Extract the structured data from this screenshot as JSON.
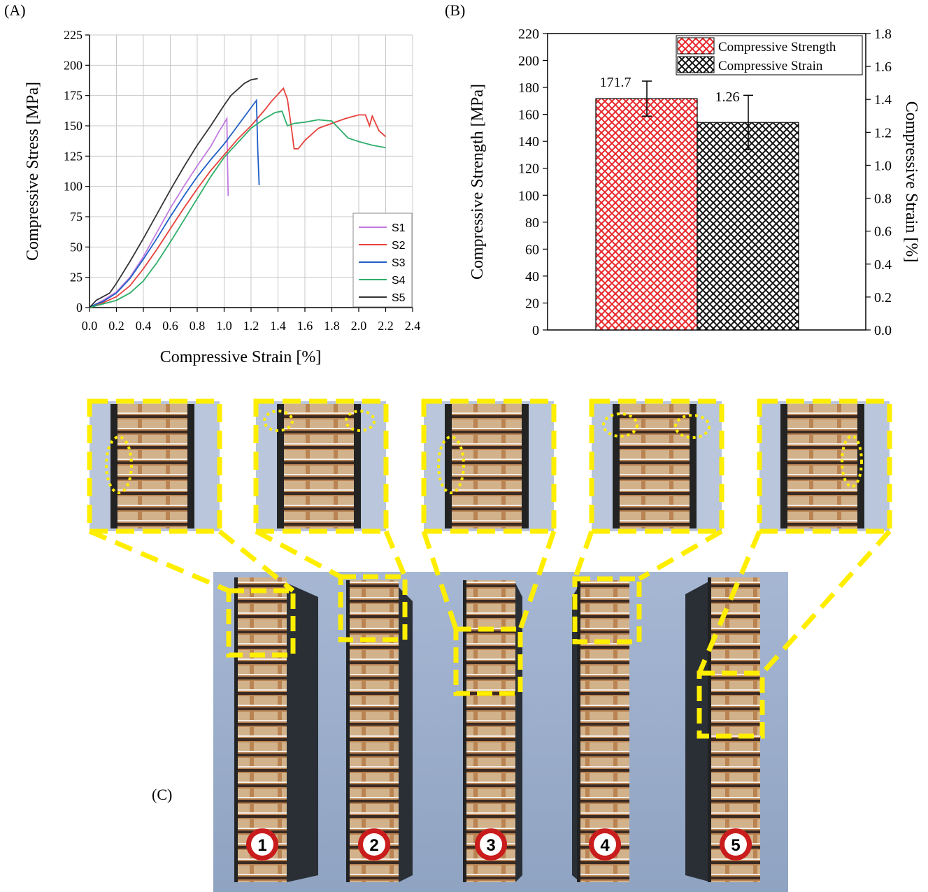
{
  "panels": {
    "a_label": "(A)",
    "b_label": "(B)",
    "c_label": "(C)"
  },
  "chart_data": [
    {
      "type": "line",
      "xlabel": "Compressive Strain [%]",
      "ylabel": "Compressive Stress [MPa]",
      "xlim": [
        0,
        2.4
      ],
      "ylim": [
        0,
        225
      ],
      "xticks": [
        "0.0",
        "0.2",
        "0.4",
        "0.6",
        "0.8",
        "1.0",
        "1.2",
        "1.4",
        "1.6",
        "1.8",
        "2.0",
        "2.2",
        "2.4"
      ],
      "yticks": [
        "0",
        "25",
        "50",
        "75",
        "100",
        "125",
        "150",
        "175",
        "200",
        "225"
      ],
      "grid": true,
      "legend_position": "bottom-right",
      "series": [
        {
          "name": "S1",
          "color": "#c27be0",
          "points": [
            [
              0,
              0
            ],
            [
              0.05,
              3
            ],
            [
              0.1,
              6
            ],
            [
              0.2,
              13
            ],
            [
              0.3,
              25
            ],
            [
              0.4,
              42
            ],
            [
              0.5,
              62
            ],
            [
              0.6,
              82
            ],
            [
              0.7,
              100
            ],
            [
              0.8,
              117
            ],
            [
              0.9,
              133
            ],
            [
              0.96,
              145
            ],
            [
              1.0,
              152
            ],
            [
              1.02,
              156
            ],
            [
              1.025,
              120
            ],
            [
              1.03,
              92
            ]
          ]
        },
        {
          "name": "S2",
          "color": "#e8403b",
          "points": [
            [
              0,
              0
            ],
            [
              0.05,
              2
            ],
            [
              0.1,
              4
            ],
            [
              0.2,
              9
            ],
            [
              0.3,
              18
            ],
            [
              0.4,
              32
            ],
            [
              0.5,
              48
            ],
            [
              0.6,
              65
            ],
            [
              0.7,
              82
            ],
            [
              0.8,
              98
            ],
            [
              0.9,
              113
            ],
            [
              1.0,
              126
            ],
            [
              1.1,
              139
            ],
            [
              1.2,
              150
            ],
            [
              1.3,
              163
            ],
            [
              1.35,
              170
            ],
            [
              1.4,
              176
            ],
            [
              1.44,
              181
            ],
            [
              1.47,
              172
            ],
            [
              1.5,
              148
            ],
            [
              1.52,
              131
            ],
            [
              1.55,
              131
            ],
            [
              1.6,
              138
            ],
            [
              1.7,
              148
            ],
            [
              1.8,
              152
            ],
            [
              1.9,
              156
            ],
            [
              2.0,
              159
            ],
            [
              2.05,
              159
            ],
            [
              2.08,
              150
            ],
            [
              2.1,
              158
            ],
            [
              2.15,
              146
            ],
            [
              2.2,
              141
            ]
          ]
        },
        {
          "name": "S3",
          "color": "#1f5fc7",
          "points": [
            [
              0,
              0
            ],
            [
              0.05,
              3
            ],
            [
              0.1,
              5
            ],
            [
              0.2,
              12
            ],
            [
              0.3,
              24
            ],
            [
              0.4,
              40
            ],
            [
              0.5,
              57
            ],
            [
              0.6,
              75
            ],
            [
              0.7,
              92
            ],
            [
              0.8,
              108
            ],
            [
              0.9,
              122
            ],
            [
              1.0,
              135
            ],
            [
              1.1,
              150
            ],
            [
              1.2,
              165
            ],
            [
              1.24,
              171
            ],
            [
              1.25,
              130
            ],
            [
              1.26,
              101
            ]
          ]
        },
        {
          "name": "S4",
          "color": "#2fae6a",
          "points": [
            [
              0,
              0
            ],
            [
              0.1,
              3
            ],
            [
              0.2,
              6
            ],
            [
              0.3,
              12
            ],
            [
              0.4,
              22
            ],
            [
              0.5,
              37
            ],
            [
              0.6,
              54
            ],
            [
              0.7,
              72
            ],
            [
              0.8,
              90
            ],
            [
              0.9,
              108
            ],
            [
              1.0,
              124
            ],
            [
              1.05,
              130
            ],
            [
              1.1,
              136
            ],
            [
              1.2,
              148
            ],
            [
              1.3,
              156
            ],
            [
              1.38,
              161
            ],
            [
              1.43,
              162
            ],
            [
              1.47,
              150
            ],
            [
              1.52,
              152
            ],
            [
              1.6,
              153
            ],
            [
              1.7,
              155
            ],
            [
              1.8,
              154
            ],
            [
              1.86,
              147
            ],
            [
              1.92,
              140
            ],
            [
              2.0,
              137
            ],
            [
              2.1,
              134
            ],
            [
              2.2,
              132
            ]
          ]
        },
        {
          "name": "S5",
          "color": "#333333",
          "points": [
            [
              0,
              0
            ],
            [
              0.05,
              6
            ],
            [
              0.1,
              9
            ],
            [
              0.15,
              12
            ],
            [
              0.2,
              20
            ],
            [
              0.3,
              38
            ],
            [
              0.4,
              57
            ],
            [
              0.5,
              77
            ],
            [
              0.6,
              97
            ],
            [
              0.7,
              116
            ],
            [
              0.8,
              134
            ],
            [
              0.9,
              150
            ],
            [
              1.0,
              167
            ],
            [
              1.05,
              175
            ],
            [
              1.15,
              185
            ],
            [
              1.2,
              188
            ],
            [
              1.25,
              189
            ]
          ]
        }
      ]
    },
    {
      "type": "bar",
      "ylabel": "Compressive Strength [MPa]",
      "ylabel_right": "Compressive Strain [%]",
      "ylim": [
        0,
        220
      ],
      "ylim_right": [
        0,
        1.8
      ],
      "yticks": [
        "0",
        "20",
        "40",
        "60",
        "80",
        "100",
        "120",
        "140",
        "160",
        "180",
        "200",
        "220"
      ],
      "yticks_right": [
        "0.0",
        "0.2",
        "0.4",
        "0.6",
        "0.8",
        "1.0",
        "1.2",
        "1.4",
        "1.6",
        "1.8"
      ],
      "legend_position": "top-right",
      "series": [
        {
          "name": "Compressive Strength",
          "value": 171.7,
          "error": 13,
          "axis": "left",
          "color": "#e8262a",
          "label": "171.7"
        },
        {
          "name": "Compressive Strain",
          "value": 1.26,
          "error": 0.165,
          "axis": "right",
          "color": "#111111",
          "label": "1.26"
        }
      ]
    }
  ],
  "photo": {
    "specimen_labels": [
      "1",
      "2",
      "3",
      "4",
      "5"
    ],
    "highlight_color": "#ffee00",
    "badge_color": "#c91c1c"
  }
}
